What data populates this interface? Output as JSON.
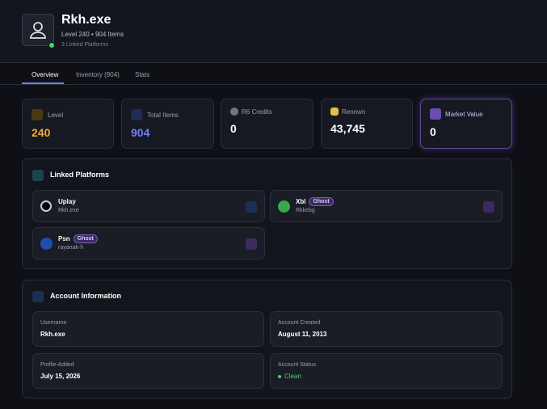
{
  "profile": {
    "name": "Rkh.exe",
    "subtitle": "Level 240 • 904 Items",
    "note": "3 Linked Platforms"
  },
  "tabs": [
    "Overview",
    "Inventory (904)",
    "Stats"
  ],
  "stats": [
    {
      "label": "Level",
      "value": "240"
    },
    {
      "label": "Total Items",
      "value": "904"
    },
    {
      "label": "R6 Credits",
      "value": "0"
    },
    {
      "label": "Renown",
      "value": "43,745"
    },
    {
      "label": "Market Value",
      "value": "0"
    }
  ],
  "linked": {
    "title": "Linked Platforms",
    "platforms": [
      {
        "name": "Uplay",
        "user": "Rkh.exe"
      },
      {
        "name": "Xbl",
        "badge": "Ghost",
        "user": "Rkkebg"
      },
      {
        "name": "Psn",
        "badge": "Ghost",
        "user": "rayanak-h"
      }
    ]
  },
  "account": {
    "title": "Account Information",
    "fields": [
      {
        "label": "Username",
        "value": "Rkh.exe"
      },
      {
        "label": "Account Created",
        "value": "August 11, 2013"
      },
      {
        "label": "Profile Added",
        "value": "July 15, 2026"
      },
      {
        "label": "Account Status",
        "value": "Clean"
      }
    ]
  }
}
